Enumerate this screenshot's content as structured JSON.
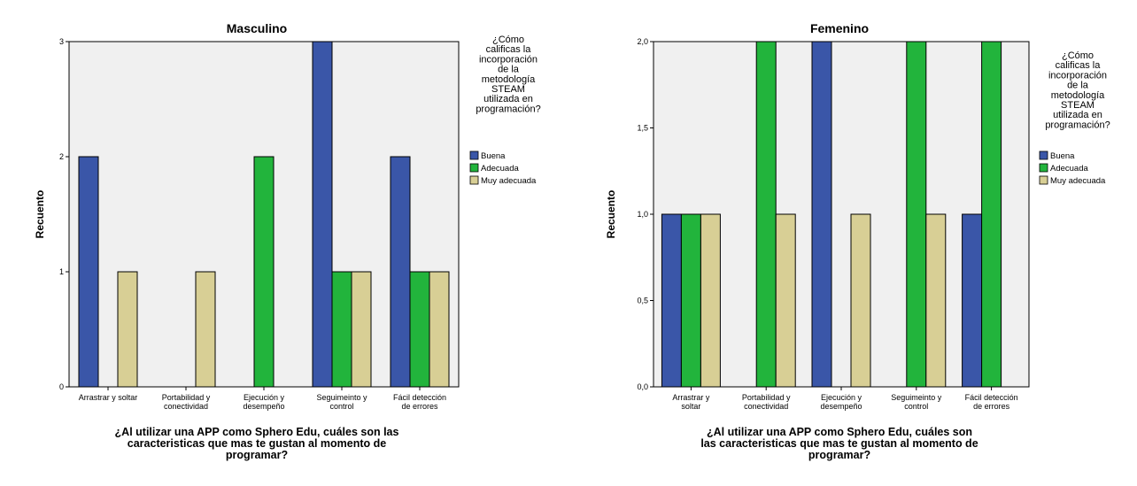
{
  "colors": {
    "Buena": "#3a56a8",
    "Adecuada": "#22b43c",
    "Muy adecuada": "#d8cf95",
    "plot_bg": "#f0f0f0"
  },
  "chart_data": [
    {
      "type": "bar",
      "title": "Masculino",
      "ylabel": "Recuento",
      "xlabel_lines": [
        "¿Al utilizar una APP como Sphero Edu, cuáles son las",
        "caracteristicas que mas te gustan al momento de",
        "programar?"
      ],
      "categories": [
        [
          "Arrastrar y soltar"
        ],
        [
          "Portabilidad y",
          "conectividad"
        ],
        [
          "Ejecución y",
          "desempeño"
        ],
        [
          "Seguimeinto y",
          "control"
        ],
        [
          "Fácil detección",
          "de errores"
        ]
      ],
      "ylim": [
        0,
        3
      ],
      "yticks": [
        0,
        1,
        2,
        3
      ],
      "ytick_labels": [
        "0",
        "1",
        "2",
        "3"
      ],
      "series": [
        {
          "name": "Buena",
          "values": [
            2,
            0,
            0,
            3,
            2
          ]
        },
        {
          "name": "Adecuada",
          "values": [
            0,
            0,
            2,
            1,
            1
          ]
        },
        {
          "name": "Muy adecuada",
          "values": [
            1,
            1,
            0,
            1,
            1
          ]
        }
      ],
      "legend": {
        "title_lines": [
          "¿Cómo",
          "calificas la",
          "incorporación",
          "de la",
          "metodología",
          "STEAM",
          "utilizada en",
          "programación?"
        ],
        "entries": [
          "Buena",
          "Adecuada",
          "Muy adecuada"
        ],
        "position": "right"
      }
    },
    {
      "type": "bar",
      "title": "Femenino",
      "ylabel": "Recuento",
      "xlabel_lines": [
        "¿Al utilizar una APP como Sphero Edu, cuáles son",
        "las caracteristicas que mas te gustan al momento de",
        "programar?"
      ],
      "categories": [
        [
          "Arrastrar y",
          "soltar"
        ],
        [
          "Portabilidad y",
          "conectividad"
        ],
        [
          "Ejecución y",
          "desempeño"
        ],
        [
          "Seguimeinto y",
          "control"
        ],
        [
          "Fácil detección",
          "de errores"
        ]
      ],
      "ylim": [
        0,
        2
      ],
      "yticks": [
        0,
        0.5,
        1,
        1.5,
        2
      ],
      "ytick_labels": [
        "0,0",
        "0,5",
        "1,0",
        "1,5",
        "2,0"
      ],
      "series": [
        {
          "name": "Buena",
          "values": [
            1,
            0,
            2,
            0,
            1
          ]
        },
        {
          "name": "Adecuada",
          "values": [
            1,
            2,
            0,
            2,
            2
          ]
        },
        {
          "name": "Muy adecuada",
          "values": [
            1,
            1,
            1,
            1,
            0
          ]
        }
      ],
      "legend": {
        "title_lines": [
          "¿Cómo",
          "calificas la",
          "incorporación",
          "de la",
          "metodología",
          "STEAM",
          "utilizada en",
          "programación?"
        ],
        "entries": [
          "Buena",
          "Adecuada",
          "Muy adecuada"
        ],
        "position": "right"
      }
    }
  ]
}
